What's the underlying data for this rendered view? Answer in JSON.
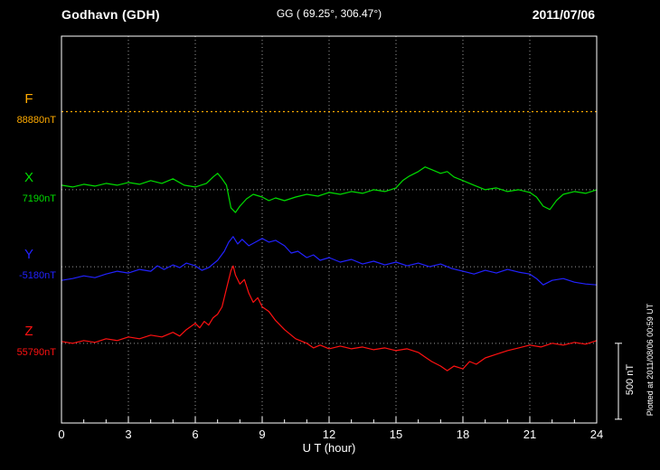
{
  "header": {
    "station": "Godhavn (GDH)",
    "coords": "GG ( 69.25°, 306.47°)",
    "date": "2011/07/06"
  },
  "axis": {
    "x_label": "U T (hour)",
    "x_min": 0,
    "x_max": 24,
    "tick_interval_hours": 3,
    "x_ticks": [
      "0",
      "3",
      "6",
      "9",
      "12",
      "15",
      "18",
      "21",
      "24"
    ]
  },
  "scale_bar": {
    "label": "500 nT",
    "nT": 500
  },
  "footer_note": "Plotted at 2011/08/06 00:59 UT",
  "colors": {
    "background": "#000000",
    "frame": "#ffffff",
    "grid": "#9a9a9a",
    "text": "#ffffff",
    "F": "#ffaa00",
    "X": "#00dd00",
    "Y": "#2222ff",
    "Z": "#ff1111"
  },
  "chart_data": {
    "type": "line",
    "title": "Godhavn (GDH) magnetogram 2011/07/06",
    "xlabel": "U T (hour)",
    "x_range": [
      0,
      24
    ],
    "grid": "dotted",
    "scale_nT_per_div": 500,
    "series": [
      {
        "name": "F",
        "label": "F",
        "baseline_label": "88880nT",
        "baseline_nT": 88880,
        "color": "#ffaa00",
        "style": "dotted",
        "points": [
          [
            0,
            0
          ],
          [
            24,
            0
          ]
        ]
      },
      {
        "name": "X",
        "label": "X",
        "baseline_label": "7190nT",
        "baseline_nT": 7190,
        "color": "#00dd00",
        "style": "solid",
        "points": [
          [
            0,
            30
          ],
          [
            0.5,
            18
          ],
          [
            1,
            36
          ],
          [
            1.5,
            24
          ],
          [
            2,
            42
          ],
          [
            2.5,
            30
          ],
          [
            3,
            48
          ],
          [
            3.5,
            36
          ],
          [
            4,
            60
          ],
          [
            4.5,
            42
          ],
          [
            5,
            72
          ],
          [
            5.5,
            30
          ],
          [
            6,
            18
          ],
          [
            6.5,
            42
          ],
          [
            6.8,
            84
          ],
          [
            7,
            108
          ],
          [
            7.2,
            72
          ],
          [
            7.4,
            30
          ],
          [
            7.6,
            -120
          ],
          [
            7.8,
            -150
          ],
          [
            8,
            -108
          ],
          [
            8.3,
            -60
          ],
          [
            8.6,
            -30
          ],
          [
            9,
            -48
          ],
          [
            9.3,
            -72
          ],
          [
            9.6,
            -54
          ],
          [
            10,
            -72
          ],
          [
            10.5,
            -48
          ],
          [
            11,
            -30
          ],
          [
            11.5,
            -42
          ],
          [
            12,
            -18
          ],
          [
            12.5,
            -30
          ],
          [
            13,
            -12
          ],
          [
            13.5,
            -24
          ],
          [
            14,
            0
          ],
          [
            14.5,
            -12
          ],
          [
            15,
            12
          ],
          [
            15.3,
            60
          ],
          [
            15.6,
            90
          ],
          [
            16,
            120
          ],
          [
            16.3,
            150
          ],
          [
            16.6,
            132
          ],
          [
            17,
            108
          ],
          [
            17.3,
            120
          ],
          [
            17.6,
            84
          ],
          [
            18,
            60
          ],
          [
            18.5,
            30
          ],
          [
            19,
            0
          ],
          [
            19.5,
            12
          ],
          [
            20,
            -12
          ],
          [
            20.5,
            0
          ],
          [
            21,
            -18
          ],
          [
            21.3,
            -48
          ],
          [
            21.6,
            -108
          ],
          [
            21.9,
            -130
          ],
          [
            22.2,
            -70
          ],
          [
            22.5,
            -30
          ],
          [
            23,
            -12
          ],
          [
            23.5,
            -24
          ],
          [
            24,
            0
          ]
        ]
      },
      {
        "name": "Y",
        "label": "Y",
        "baseline_label": "-5180nT",
        "baseline_nT": -5180,
        "color": "#2222ff",
        "style": "solid",
        "points": [
          [
            0,
            -90
          ],
          [
            0.5,
            -78
          ],
          [
            1,
            -60
          ],
          [
            1.5,
            -72
          ],
          [
            2,
            -48
          ],
          [
            2.5,
            -30
          ],
          [
            3,
            -42
          ],
          [
            3.5,
            -18
          ],
          [
            4,
            -30
          ],
          [
            4.3,
            6
          ],
          [
            4.6,
            -18
          ],
          [
            5,
            12
          ],
          [
            5.3,
            -6
          ],
          [
            5.6,
            24
          ],
          [
            6,
            6
          ],
          [
            6.3,
            -24
          ],
          [
            6.6,
            -6
          ],
          [
            7,
            42
          ],
          [
            7.3,
            102
          ],
          [
            7.5,
            162
          ],
          [
            7.7,
            198
          ],
          [
            7.9,
            150
          ],
          [
            8.1,
            180
          ],
          [
            8.4,
            138
          ],
          [
            8.7,
            162
          ],
          [
            9,
            186
          ],
          [
            9.3,
            162
          ],
          [
            9.6,
            174
          ],
          [
            10,
            138
          ],
          [
            10.3,
            90
          ],
          [
            10.6,
            102
          ],
          [
            11,
            60
          ],
          [
            11.3,
            78
          ],
          [
            11.6,
            42
          ],
          [
            12,
            60
          ],
          [
            12.5,
            30
          ],
          [
            13,
            48
          ],
          [
            13.5,
            18
          ],
          [
            14,
            36
          ],
          [
            14.5,
            12
          ],
          [
            15,
            30
          ],
          [
            15.5,
            6
          ],
          [
            16,
            24
          ],
          [
            16.5,
            0
          ],
          [
            17,
            18
          ],
          [
            17.5,
            -12
          ],
          [
            18,
            -30
          ],
          [
            18.5,
            -48
          ],
          [
            19,
            -24
          ],
          [
            19.5,
            -42
          ],
          [
            20,
            -18
          ],
          [
            20.5,
            -36
          ],
          [
            21,
            -48
          ],
          [
            21.3,
            -78
          ],
          [
            21.6,
            -120
          ],
          [
            22,
            -90
          ],
          [
            22.5,
            -78
          ],
          [
            23,
            -102
          ],
          [
            23.5,
            -114
          ],
          [
            24,
            -120
          ]
        ]
      },
      {
        "name": "Z",
        "label": "Z",
        "baseline_label": "55790nT",
        "baseline_nT": 55790,
        "color": "#ff1111",
        "style": "solid",
        "points": [
          [
            0,
            12
          ],
          [
            0.5,
            0
          ],
          [
            1,
            18
          ],
          [
            1.5,
            6
          ],
          [
            2,
            30
          ],
          [
            2.5,
            18
          ],
          [
            3,
            42
          ],
          [
            3.5,
            30
          ],
          [
            4,
            54
          ],
          [
            4.5,
            42
          ],
          [
            5,
            72
          ],
          [
            5.3,
            48
          ],
          [
            5.6,
            90
          ],
          [
            6,
            132
          ],
          [
            6.2,
            102
          ],
          [
            6.4,
            144
          ],
          [
            6.6,
            120
          ],
          [
            6.8,
            168
          ],
          [
            7,
            192
          ],
          [
            7.2,
            240
          ],
          [
            7.4,
            360
          ],
          [
            7.6,
            480
          ],
          [
            7.7,
            510
          ],
          [
            7.8,
            450
          ],
          [
            8,
            390
          ],
          [
            8.2,
            420
          ],
          [
            8.4,
            330
          ],
          [
            8.6,
            270
          ],
          [
            8.8,
            300
          ],
          [
            9,
            240
          ],
          [
            9.3,
            210
          ],
          [
            9.6,
            150
          ],
          [
            10,
            90
          ],
          [
            10.5,
            30
          ],
          [
            11,
            0
          ],
          [
            11.3,
            -30
          ],
          [
            11.6,
            -12
          ],
          [
            12,
            -36
          ],
          [
            12.5,
            -18
          ],
          [
            13,
            -36
          ],
          [
            13.5,
            -24
          ],
          [
            14,
            -42
          ],
          [
            14.5,
            -30
          ],
          [
            15,
            -48
          ],
          [
            15.5,
            -36
          ],
          [
            16,
            -60
          ],
          [
            16.3,
            -90
          ],
          [
            16.6,
            -120
          ],
          [
            17,
            -150
          ],
          [
            17.3,
            -180
          ],
          [
            17.6,
            -150
          ],
          [
            18,
            -168
          ],
          [
            18.3,
            -120
          ],
          [
            18.6,
            -138
          ],
          [
            19,
            -96
          ],
          [
            19.5,
            -72
          ],
          [
            20,
            -48
          ],
          [
            20.5,
            -30
          ],
          [
            21,
            -12
          ],
          [
            21.5,
            -24
          ],
          [
            22,
            0
          ],
          [
            22.5,
            -12
          ],
          [
            23,
            6
          ],
          [
            23.5,
            -6
          ],
          [
            24,
            18
          ]
        ]
      }
    ]
  }
}
